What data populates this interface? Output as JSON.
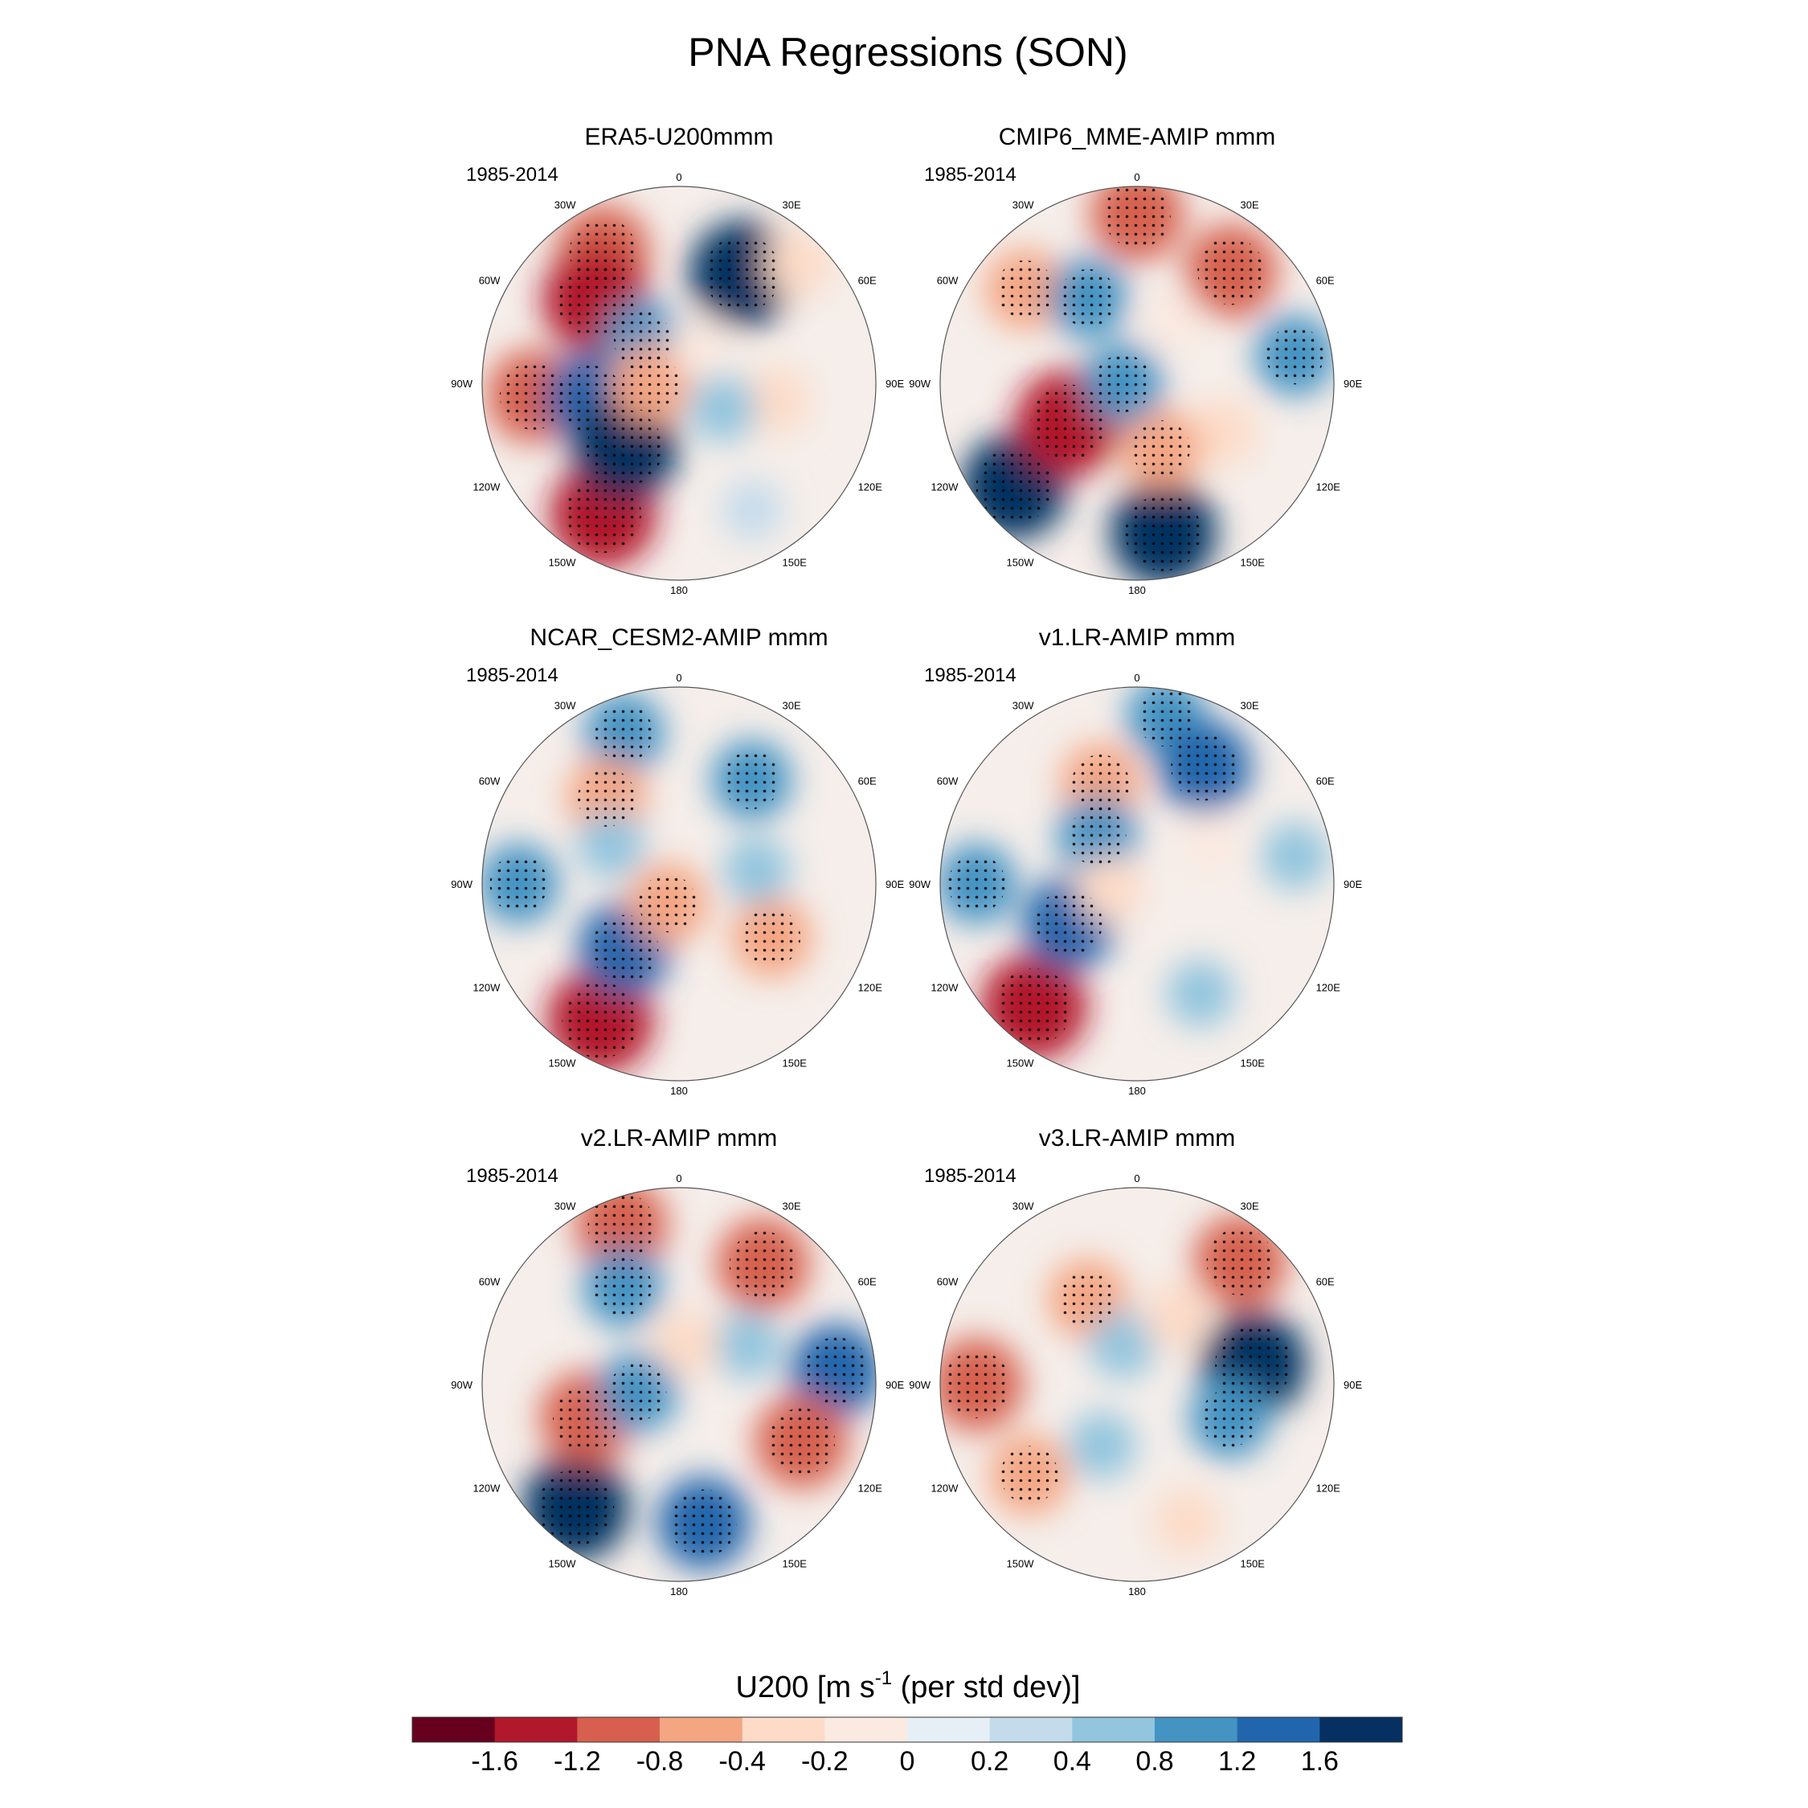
{
  "chart_data": {
    "type": "heatmap",
    "title": "PNA Regressions (SON)",
    "projection": "south-polar-stereographic",
    "longitude_labels": [
      "0",
      "30E",
      "60E",
      "90E",
      "120E",
      "150E",
      "180",
      "150W",
      "120W",
      "90W",
      "60W",
      "30W"
    ],
    "panels": [
      {
        "title": "ERA5-U200mmm",
        "period": "1985-2014",
        "features": [
          {
            "lon": -30,
            "lat": -36,
            "value": -1.2
          },
          {
            "lon": 30,
            "lat": -45,
            "value": 1.6
          },
          {
            "lon": -45,
            "lat": -48,
            "value": -1.6
          },
          {
            "lon": 45,
            "lat": -30,
            "value": -0.4
          },
          {
            "lon": -95,
            "lat": -38,
            "value": -1.2
          },
          {
            "lon": -150,
            "lat": -36,
            "value": -1.6
          },
          {
            "lon": 150,
            "lat": -38,
            "value": 0.2
          },
          {
            "lon": -100,
            "lat": -58,
            "value": 1.2
          },
          {
            "lon": -140,
            "lat": -60,
            "value": 1.6
          },
          {
            "lon": 100,
            "lat": -55,
            "value": -0.4
          },
          {
            "lon": -40,
            "lat": -70,
            "value": 0.8
          },
          {
            "lon": 120,
            "lat": -72,
            "value": 0.4
          },
          {
            "lon": -90,
            "lat": -80,
            "value": -0.8
          },
          {
            "lon": 30,
            "lat": -75,
            "value": -0.2
          }
        ]
      },
      {
        "title": "CMIP6_MME-AMIP  mmm",
        "period": "1985-2014",
        "features": [
          {
            "lon": 0,
            "lat": -30,
            "value": -1.2
          },
          {
            "lon": 40,
            "lat": -38,
            "value": -1.2
          },
          {
            "lon": -50,
            "lat": -38,
            "value": -0.8
          },
          {
            "lon": 80,
            "lat": -33,
            "value": 0.8
          },
          {
            "lon": -130,
            "lat": -33,
            "value": 1.6
          },
          {
            "lon": 170,
            "lat": -36,
            "value": 1.6
          },
          {
            "lon": -30,
            "lat": -55,
            "value": 0.8
          },
          {
            "lon": 120,
            "lat": -55,
            "value": -0.4
          },
          {
            "lon": -120,
            "lat": -62,
            "value": -1.6
          },
          {
            "lon": 160,
            "lat": -65,
            "value": -0.8
          },
          {
            "lon": 30,
            "lat": -65,
            "value": -0.2
          },
          {
            "lon": -90,
            "lat": -85,
            "value": 0.8
          }
        ]
      },
      {
        "title": "NCAR_CESM2-AMIP  mmm",
        "period": "1985-2014",
        "features": [
          {
            "lon": -20,
            "lat": -33,
            "value": 0.8
          },
          {
            "lon": 35,
            "lat": -45,
            "value": 0.8
          },
          {
            "lon": -40,
            "lat": -50,
            "value": -0.8
          },
          {
            "lon": -90,
            "lat": -33,
            "value": 0.8
          },
          {
            "lon": -150,
            "lat": -34,
            "value": -1.6
          },
          {
            "lon": 120,
            "lat": -52,
            "value": -0.8
          },
          {
            "lon": -140,
            "lat": -60,
            "value": 1.2
          },
          {
            "lon": 80,
            "lat": -62,
            "value": 0.4
          },
          {
            "lon": -60,
            "lat": -62,
            "value": 0.4
          },
          {
            "lon": -150,
            "lat": -82,
            "value": -0.8
          }
        ]
      },
      {
        "title": "v1.LR-AMIP  mmm",
        "period": "1985-2014",
        "features": [
          {
            "lon": 10,
            "lat": -30,
            "value": 0.8
          },
          {
            "lon": 30,
            "lat": -42,
            "value": 1.2
          },
          {
            "lon": -20,
            "lat": -52,
            "value": -0.8
          },
          {
            "lon": -90,
            "lat": -33,
            "value": 0.8
          },
          {
            "lon": -140,
            "lat": -33,
            "value": -1.6
          },
          {
            "lon": -120,
            "lat": -62,
            "value": 1.2
          },
          {
            "lon": -40,
            "lat": -68,
            "value": 0.8
          },
          {
            "lon": 80,
            "lat": -33,
            "value": 0.4
          },
          {
            "lon": 150,
            "lat": -45,
            "value": 0.4
          },
          {
            "lon": 60,
            "lat": -60,
            "value": -0.2
          },
          {
            "lon": -100,
            "lat": -80,
            "value": -0.4
          }
        ]
      },
      {
        "title": "v2.LR-AMIP  mmm",
        "period": "1985-2014",
        "features": [
          {
            "lon": -20,
            "lat": -30,
            "value": -1.2
          },
          {
            "lon": 35,
            "lat": -38,
            "value": -1.2
          },
          {
            "lon": -30,
            "lat": -50,
            "value": 0.8
          },
          {
            "lon": 85,
            "lat": -34,
            "value": 1.2
          },
          {
            "lon": -140,
            "lat": -33,
            "value": 1.6
          },
          {
            "lon": 170,
            "lat": -40,
            "value": 1.2
          },
          {
            "lon": 115,
            "lat": -42,
            "value": -1.2
          },
          {
            "lon": -110,
            "lat": -55,
            "value": -1.2
          },
          {
            "lon": 60,
            "lat": -62,
            "value": 0.4
          },
          {
            "lon": -100,
            "lat": -75,
            "value": 0.8
          },
          {
            "lon": 10,
            "lat": -75,
            "value": -0.4
          }
        ]
      },
      {
        "title": "v3.LR-AMIP  mmm",
        "period": "1985-2014",
        "features": [
          {
            "lon": 40,
            "lat": -33,
            "value": -1.2
          },
          {
            "lon": 80,
            "lat": -48,
            "value": 1.6
          },
          {
            "lon": 110,
            "lat": -55,
            "value": 0.8
          },
          {
            "lon": -90,
            "lat": -33,
            "value": -1.2
          },
          {
            "lon": -30,
            "lat": -55,
            "value": -0.8
          },
          {
            "lon": -130,
            "lat": -40,
            "value": -0.8
          },
          {
            "lon": 160,
            "lat": -38,
            "value": -0.4
          },
          {
            "lon": -150,
            "lat": -65,
            "value": 0.4
          },
          {
            "lon": -20,
            "lat": -75,
            "value": 0.4
          },
          {
            "lon": 30,
            "lat": -62,
            "value": -0.4
          }
        ]
      }
    ],
    "colorbar": {
      "title": "U200 [m s",
      "title_sup": "-1",
      "title_tail": " (per std dev)]",
      "levels": [
        -1.6,
        -1.2,
        -0.8,
        -0.4,
        -0.2,
        0,
        0.2,
        0.4,
        0.8,
        1.2,
        1.6
      ],
      "tick_labels": [
        "-1.6",
        "-1.2",
        "-0.8",
        "-0.4",
        "-0.2",
        "0",
        "0.2",
        "0.4",
        "0.8",
        "1.2",
        "1.6"
      ],
      "colors": [
        "#67001f",
        "#b2182b",
        "#d6604d",
        "#f4a582",
        "#fddbc7",
        "#fbeae1",
        "#e6eff5",
        "#c4dbeb",
        "#92c5de",
        "#4393c3",
        "#2166ac",
        "#053061"
      ]
    }
  }
}
